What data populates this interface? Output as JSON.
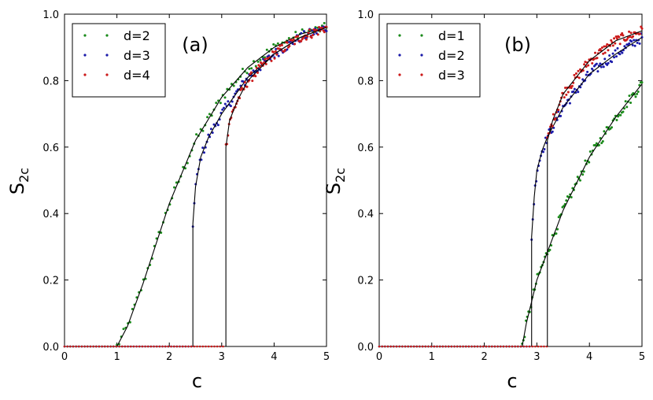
{
  "chart_data": [
    {
      "type": "scatter",
      "panel_label": "(a)",
      "xlabel": "c",
      "ylabel_main": "S",
      "ylabel_sub": "2c",
      "xlim": [
        0,
        5
      ],
      "ylim": [
        0,
        1
      ],
      "xticks": [
        "0",
        "1",
        "2",
        "3",
        "4",
        "5"
      ],
      "yticks": [
        "0.0",
        "0.2",
        "0.4",
        "0.6",
        "0.8",
        "1.0"
      ],
      "legend_position": "top-left",
      "series": [
        {
          "name": "d=2",
          "color": "#1a8a1a",
          "threshold": 1.0,
          "jump": 0.0,
          "fit": [
            [
              1.0,
              0.0
            ],
            [
              1.2,
              0.06
            ],
            [
              1.5,
              0.19
            ],
            [
              2.0,
              0.43
            ],
            [
              2.5,
              0.62
            ],
            [
              3.0,
              0.75
            ],
            [
              3.5,
              0.84
            ],
            [
              4.0,
              0.9
            ],
            [
              4.5,
              0.94
            ],
            [
              5.0,
              0.96
            ]
          ]
        },
        {
          "name": "d=3",
          "color": "#1a1aaa",
          "threshold": 2.45,
          "jump": 0.37,
          "fit": [
            [
              2.45,
              0.37
            ],
            [
              2.5,
              0.48
            ],
            [
              2.6,
              0.57
            ],
            [
              2.75,
              0.63
            ],
            [
              3.0,
              0.7
            ],
            [
              3.5,
              0.81
            ],
            [
              4.0,
              0.88
            ],
            [
              4.5,
              0.93
            ],
            [
              5.0,
              0.96
            ]
          ]
        },
        {
          "name": "d=4",
          "color": "#cc1a1a",
          "threshold": 3.08,
          "jump": 0.6,
          "fit": [
            [
              3.08,
              0.6
            ],
            [
              3.15,
              0.68
            ],
            [
              3.3,
              0.74
            ],
            [
              3.5,
              0.8
            ],
            [
              4.0,
              0.88
            ],
            [
              4.5,
              0.93
            ],
            [
              5.0,
              0.96
            ]
          ]
        }
      ]
    },
    {
      "type": "scatter",
      "panel_label": "(b)",
      "xlabel": "c",
      "ylabel_main": "S",
      "ylabel_sub": "2c",
      "xlim": [
        0,
        5
      ],
      "ylim": [
        0,
        1
      ],
      "xticks": [
        "0",
        "1",
        "2",
        "3",
        "4",
        "5"
      ],
      "yticks": [
        "0.0",
        "0.2",
        "0.4",
        "0.6",
        "0.8",
        "1.0"
      ],
      "legend_position": "top-left",
      "series": [
        {
          "name": "d=1",
          "color": "#1a8a1a",
          "threshold": 2.72,
          "jump": 0.0,
          "fit": [
            [
              2.72,
              0.0
            ],
            [
              2.8,
              0.07
            ],
            [
              3.0,
              0.2
            ],
            [
              3.5,
              0.41
            ],
            [
              4.0,
              0.57
            ],
            [
              4.5,
              0.69
            ],
            [
              5.0,
              0.79
            ]
          ]
        },
        {
          "name": "d=2",
          "color": "#1a1aaa",
          "threshold": 2.9,
          "jump": 0.33,
          "fit": [
            [
              2.9,
              0.33
            ],
            [
              2.95,
              0.45
            ],
            [
              3.0,
              0.53
            ],
            [
              3.1,
              0.59
            ],
            [
              3.2,
              0.63
            ],
            [
              3.5,
              0.72
            ],
            [
              4.0,
              0.82
            ],
            [
              4.5,
              0.88
            ],
            [
              5.0,
              0.93
            ]
          ]
        },
        {
          "name": "d=3",
          "color": "#cc1a1a",
          "threshold": 3.2,
          "jump": 0.62,
          "fit": [
            [
              3.2,
              0.62
            ],
            [
              3.3,
              0.68
            ],
            [
              3.5,
              0.76
            ],
            [
              4.0,
              0.86
            ],
            [
              4.5,
              0.92
            ],
            [
              5.0,
              0.95
            ]
          ]
        }
      ]
    }
  ]
}
